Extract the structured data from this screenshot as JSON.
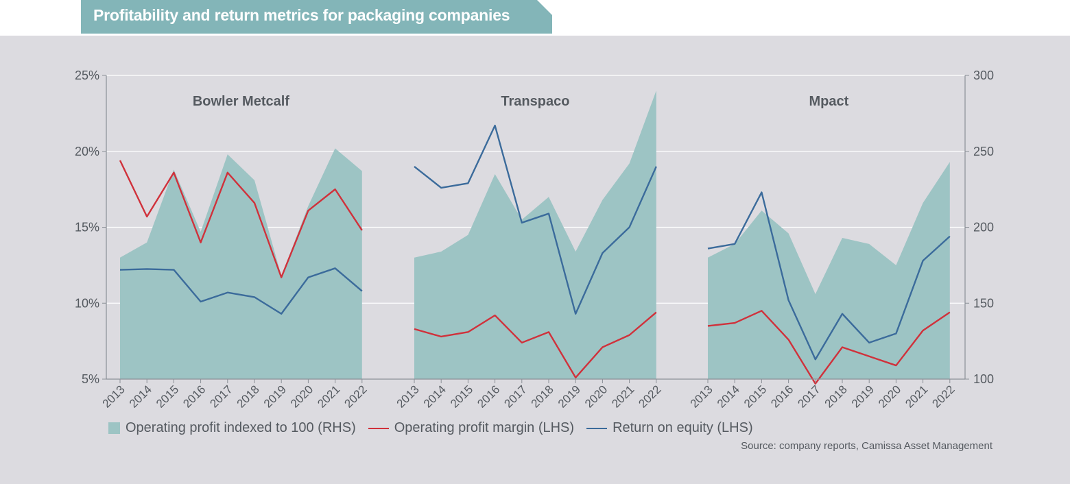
{
  "title": "Profitability and return metrics for packaging companies",
  "source": "Source: company reports, Camissa Asset Management",
  "legend": {
    "area": "Operating profit indexed to 100 (RHS)",
    "margin": "Operating profit margin (LHS)",
    "roe": "Return on equity (LHS)"
  },
  "colors": {
    "area": "#9dc4c4",
    "margin": "#d0313b",
    "roe": "#3b6b9b",
    "title_bg": "#83b5b8",
    "panel_bg": "#dcdbe0"
  },
  "chart_data": {
    "type": "line+area",
    "left_axis": {
      "label": "LHS",
      "ylim": [
        5,
        25
      ],
      "ticks": [
        5,
        10,
        15,
        20,
        25
      ],
      "tick_labels": [
        "5%",
        "10%",
        "15%",
        "20%",
        "25%"
      ]
    },
    "right_axis": {
      "label": "RHS",
      "ylim": [
        100,
        300
      ],
      "ticks": [
        100,
        150,
        200,
        250,
        300
      ],
      "tick_labels": [
        "100",
        "150",
        "200",
        "250",
        "300"
      ]
    },
    "grid": true,
    "panels": [
      {
        "name": "Bowler Metcalf",
        "years": [
          "2013",
          "2014",
          "2015",
          "2016",
          "2017",
          "2018",
          "2019",
          "2020",
          "2021",
          "2022"
        ],
        "operating_profit_index": [
          180,
          190,
          238,
          197,
          248,
          231,
          168,
          214,
          252,
          237
        ],
        "operating_profit_margin": [
          19.4,
          15.7,
          18.6,
          14.0,
          18.6,
          16.6,
          11.7,
          16.1,
          17.5,
          14.8
        ],
        "return_on_equity": [
          12.2,
          12.25,
          12.2,
          10.1,
          10.7,
          10.4,
          9.3,
          11.7,
          12.3,
          10.8
        ]
      },
      {
        "name": "Transpaco",
        "years": [
          "2013",
          "2014",
          "2015",
          "2016",
          "2017",
          "2018",
          "2019",
          "2020",
          "2021",
          "2022"
        ],
        "operating_profit_index": [
          180,
          184,
          195,
          235,
          205,
          220,
          184,
          218,
          242,
          290
        ],
        "operating_profit_margin": [
          8.3,
          7.8,
          8.1,
          9.2,
          7.4,
          8.1,
          5.1,
          7.1,
          7.9,
          9.4
        ],
        "return_on_equity": [
          19.0,
          17.6,
          17.9,
          21.7,
          15.3,
          15.9,
          9.3,
          13.3,
          15.0,
          19.0
        ]
      },
      {
        "name": "Mpact",
        "years": [
          "2013",
          "2014",
          "2015",
          "2016",
          "2017",
          "2018",
          "2019",
          "2020",
          "2021",
          "2022"
        ],
        "operating_profit_index": [
          180,
          189,
          211,
          196,
          156,
          193,
          189,
          175,
          216,
          243
        ],
        "operating_profit_margin": [
          8.5,
          8.7,
          9.5,
          7.6,
          4.7,
          7.1,
          6.5,
          5.9,
          8.2,
          9.4
        ],
        "return_on_equity": [
          13.6,
          13.9,
          17.3,
          10.2,
          6.3,
          9.3,
          7.4,
          8.0,
          12.8,
          14.4
        ]
      }
    ]
  }
}
